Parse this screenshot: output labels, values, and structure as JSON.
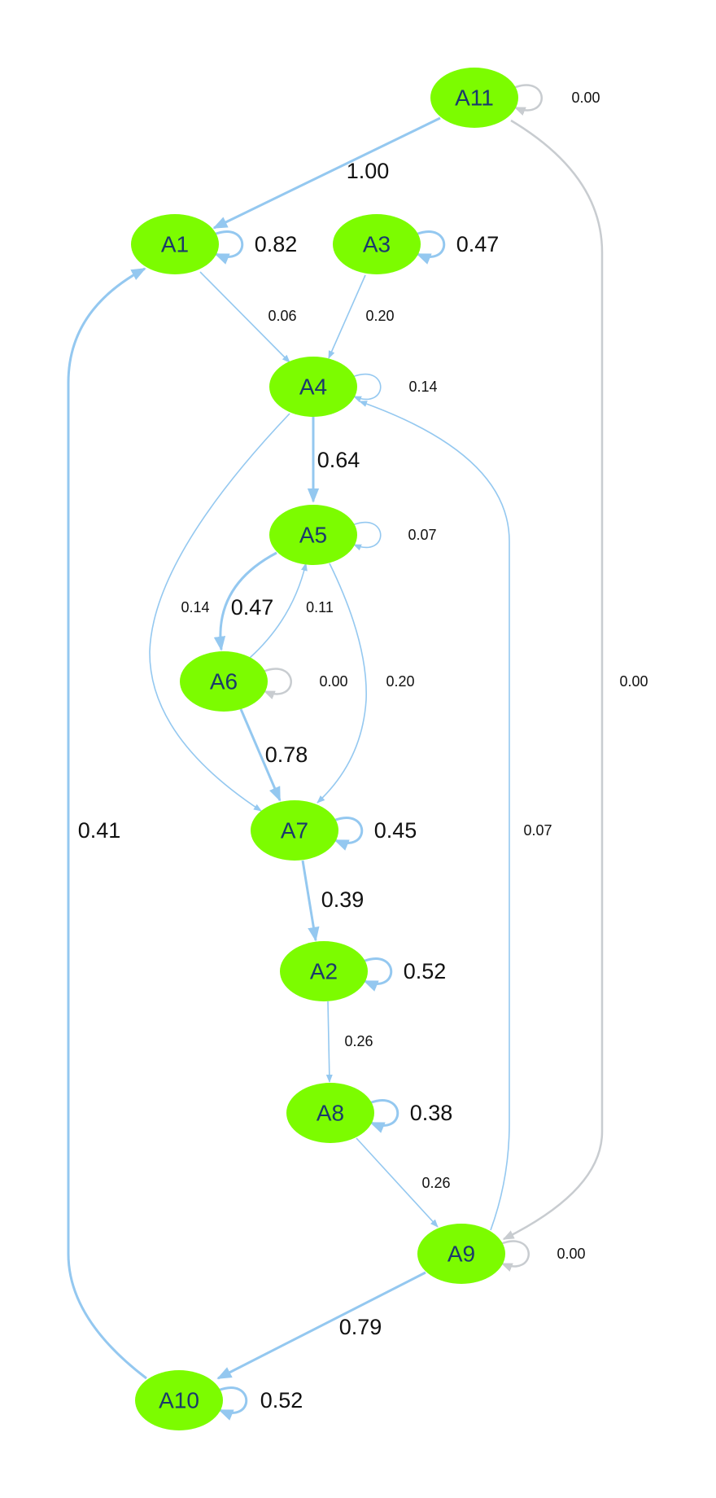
{
  "colors": {
    "node_fill": "#7cfc00",
    "node_text": "#1a3a6b",
    "edge": "#94c8f0",
    "edge_zero": "#c8ccd0",
    "label": "#111111"
  },
  "nodes": [
    {
      "id": "A11",
      "label": "A11"
    },
    {
      "id": "A1",
      "label": "A1"
    },
    {
      "id": "A3",
      "label": "A3"
    },
    {
      "id": "A4",
      "label": "A4"
    },
    {
      "id": "A5",
      "label": "A5"
    },
    {
      "id": "A6",
      "label": "A6"
    },
    {
      "id": "A7",
      "label": "A7"
    },
    {
      "id": "A2",
      "label": "A2"
    },
    {
      "id": "A8",
      "label": "A8"
    },
    {
      "id": "A9",
      "label": "A9"
    },
    {
      "id": "A10",
      "label": "A10"
    }
  ],
  "edges": [
    {
      "from": "A11",
      "to": "A11",
      "label": "0.00"
    },
    {
      "from": "A11",
      "to": "A1",
      "label": "1.00"
    },
    {
      "from": "A11",
      "to": "A9",
      "label": "0.00"
    },
    {
      "from": "A1",
      "to": "A1",
      "label": "0.82"
    },
    {
      "from": "A1",
      "to": "A4",
      "label": "0.06"
    },
    {
      "from": "A3",
      "to": "A3",
      "label": "0.47"
    },
    {
      "from": "A3",
      "to": "A4",
      "label": "0.20"
    },
    {
      "from": "A4",
      "to": "A4",
      "label": "0.14"
    },
    {
      "from": "A4",
      "to": "A5",
      "label": "0.64"
    },
    {
      "from": "A4",
      "to": "A7",
      "label": "0.14"
    },
    {
      "from": "A5",
      "to": "A5",
      "label": "0.07"
    },
    {
      "from": "A5",
      "to": "A6",
      "label": "0.47"
    },
    {
      "from": "A5",
      "to": "A7",
      "label": "0.20"
    },
    {
      "from": "A6",
      "to": "A5",
      "label": "0.11"
    },
    {
      "from": "A6",
      "to": "A6",
      "label": "0.00"
    },
    {
      "from": "A6",
      "to": "A7",
      "label": "0.78"
    },
    {
      "from": "A7",
      "to": "A7",
      "label": "0.45"
    },
    {
      "from": "A7",
      "to": "A2",
      "label": "0.39"
    },
    {
      "from": "A2",
      "to": "A2",
      "label": "0.52"
    },
    {
      "from": "A2",
      "to": "A8",
      "label": "0.26"
    },
    {
      "from": "A8",
      "to": "A8",
      "label": "0.38"
    },
    {
      "from": "A8",
      "to": "A9",
      "label": "0.26"
    },
    {
      "from": "A9",
      "to": "A9",
      "label": "0.00"
    },
    {
      "from": "A9",
      "to": "A4",
      "label": "0.07"
    },
    {
      "from": "A9",
      "to": "A10",
      "label": "0.79"
    },
    {
      "from": "A10",
      "to": "A10",
      "label": "0.52"
    },
    {
      "from": "A10",
      "to": "A1",
      "label": "0.41"
    }
  ]
}
